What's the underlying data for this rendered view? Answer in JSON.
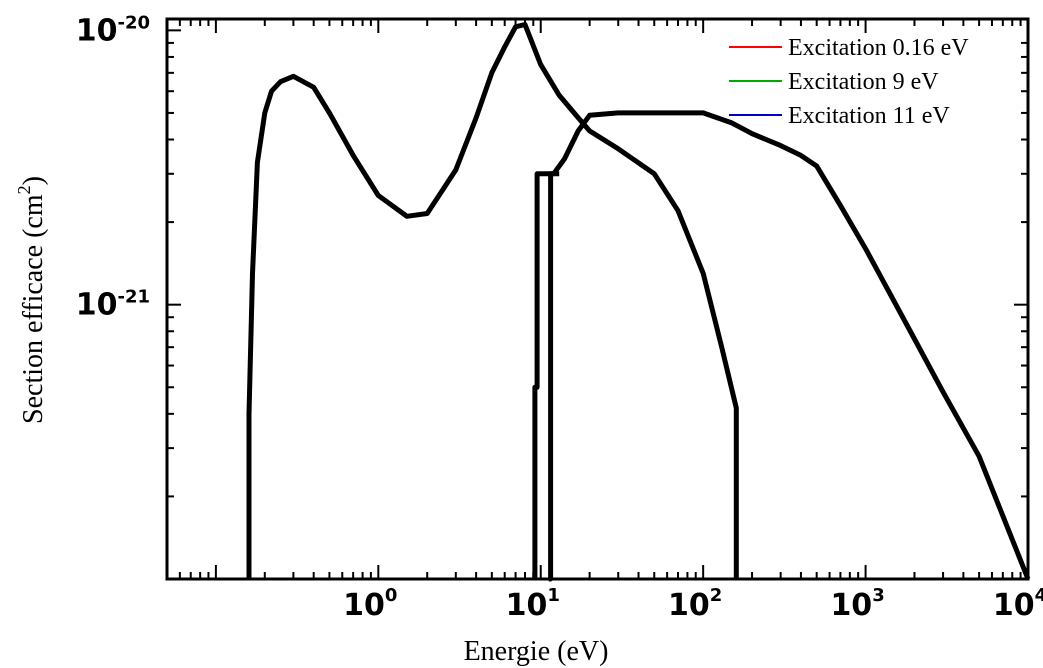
{
  "chart_data": {
    "type": "line",
    "xlabel": "Energie (eV)",
    "ylabel": "Section efficace (cm",
    "ylabel_sup": "2",
    "ylabel_close": ")",
    "xscale": "log",
    "yscale": "log",
    "xlim": [
      0.05,
      10000
    ],
    "ylim": [
      1e-22,
      1.1e-20
    ],
    "x_ticks": [
      {
        "value": 1,
        "base": "10",
        "exp": "0"
      },
      {
        "value": 10,
        "base": "10",
        "exp": "1"
      },
      {
        "value": 100,
        "base": "10",
        "exp": "2"
      },
      {
        "value": 1000,
        "base": "10",
        "exp": "3"
      },
      {
        "value": 10000,
        "base": "10",
        "exp": "4"
      }
    ],
    "y_ticks": [
      {
        "value": 1e-20,
        "base": "10",
        "exp": "-20"
      },
      {
        "value": 1e-21,
        "base": "10",
        "exp": "-21"
      }
    ],
    "grid": false,
    "legend_position": "top-right",
    "series": [
      {
        "name": "Excitation  0.16 eV",
        "legend_color": "#ff0000",
        "line_color": "#000000",
        "x": [
          0.16,
          0.16,
          0.168,
          0.18,
          0.2,
          0.22,
          0.25,
          0.3,
          0.4,
          0.5,
          0.7,
          1,
          1.5,
          2,
          3,
          4,
          5,
          6,
          7,
          8,
          10,
          13,
          17,
          20,
          30,
          50,
          70,
          100,
          130,
          160,
          160
        ],
        "y": [
          1e-22,
          4e-22,
          1.3e-21,
          3.3e-21,
          5e-21,
          6e-21,
          6.5e-21,
          6.8e-21,
          6.2e-21,
          5e-21,
          3.5e-21,
          2.5e-21,
          2.1e-21,
          2.15e-21,
          3.1e-21,
          4.8e-21,
          7e-21,
          8.7e-21,
          1.03e-20,
          1.05e-20,
          7.5e-21,
          5.8e-21,
          4.8e-21,
          4.3e-21,
          3.7e-21,
          3e-21,
          2.2e-21,
          1.3e-21,
          7e-22,
          4.2e-22,
          1e-22
        ]
      },
      {
        "name": "Excitation  9 eV",
        "legend_color": "#00aa00",
        "line_color": "#000000",
        "x": [
          9.2,
          9.2,
          9.5,
          9.5,
          11,
          12,
          14,
          17,
          20,
          30,
          50,
          100,
          150,
          200,
          300,
          400,
          500,
          700,
          1000,
          2000,
          3000,
          5000,
          10000
        ],
        "y": [
          1e-22,
          5e-22,
          5e-22,
          3e-21,
          3e-21,
          3e-21,
          3.4e-21,
          4.3e-21,
          4.9e-21,
          5e-21,
          5e-21,
          5e-21,
          4.6e-21,
          4.2e-21,
          3.8e-21,
          3.5e-21,
          3.2e-21,
          2.3e-21,
          1.6e-21,
          7.5e-22,
          4.8e-22,
          2.8e-22,
          1e-22
        ]
      },
      {
        "name": "Excitation  11 eV",
        "legend_color": "#0000cc",
        "line_color": "#000000",
        "x": [
          11.2,
          11.5,
          11.5,
          13
        ],
        "y": [
          1e-22,
          1e-22,
          3e-21,
          3e-21
        ]
      }
    ]
  }
}
